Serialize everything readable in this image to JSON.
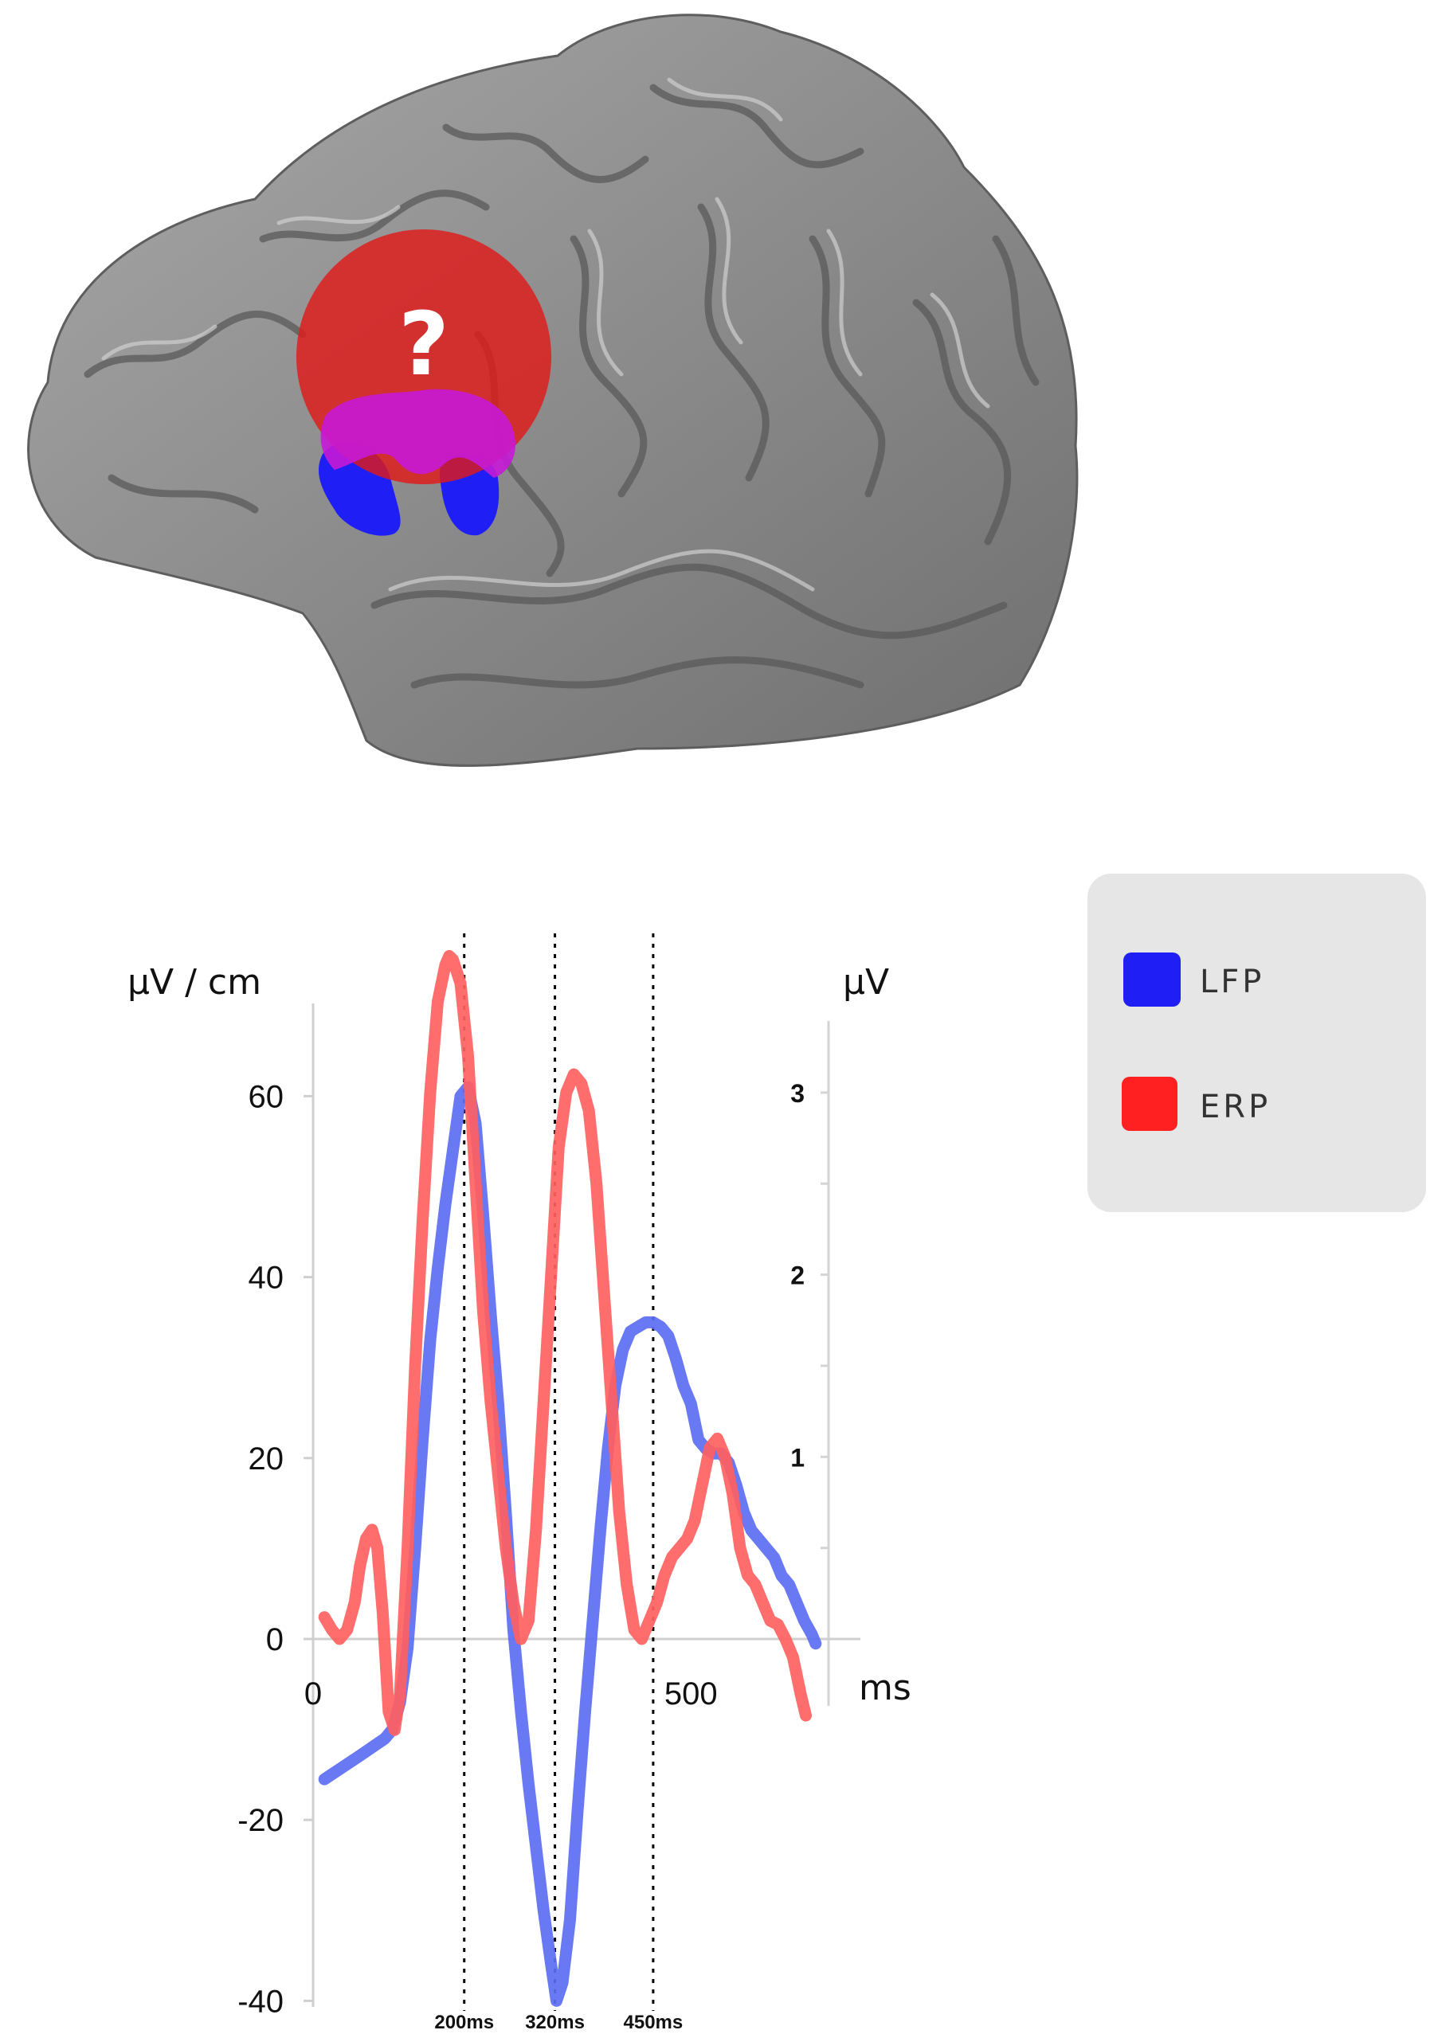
{
  "chart_data": {
    "type": "line",
    "x_unit": "ms",
    "xlim": [
      0,
      720
    ],
    "x_ticks": [
      "0",
      "500"
    ],
    "y_left_label": "µV / cm",
    "y_left_lim": [
      -40,
      70
    ],
    "y_left_ticks": [
      "60",
      "40",
      "20",
      "0",
      "-20",
      "-40"
    ],
    "y_right_label": "µV",
    "y_right_lim": [
      -2,
      3.5
    ],
    "y_right_ticks": [
      "3",
      "2",
      "1"
    ],
    "markers": [
      {
        "x": 200,
        "label": "200ms"
      },
      {
        "x": 320,
        "label": "320ms"
      },
      {
        "x": 450,
        "label": "450ms"
      }
    ],
    "annotation": "?",
    "legend": {
      "position": "top-right",
      "items": [
        {
          "name": "LFP",
          "color": "#1f1ff5"
        },
        {
          "name": "ERP",
          "color": "#ff2121"
        }
      ]
    },
    "series": [
      {
        "name": "LFP",
        "axis": "left",
        "color": "#5c6cf2",
        "x": [
          15,
          60,
          95,
          105,
          115,
          125,
          135,
          145,
          155,
          165,
          175,
          185,
          195,
          205,
          215,
          225,
          235,
          245,
          255,
          265,
          275,
          285,
          295,
          305,
          315,
          322,
          330,
          340,
          350,
          360,
          370,
          380,
          390,
          400,
          410,
          420,
          430,
          440,
          450,
          460,
          470,
          480,
          490,
          500,
          510,
          520,
          530,
          540,
          550,
          560,
          570,
          580,
          590,
          600,
          610,
          620,
          630,
          640,
          650,
          660,
          665
        ],
        "y": [
          -15.5,
          -13,
          -11,
          -10,
          -7,
          -1,
          10,
          22,
          33,
          41,
          48,
          54,
          60,
          61,
          57,
          47,
          36,
          26,
          14,
          1,
          -8,
          -16,
          -23,
          -30,
          -36,
          -40,
          -38,
          -31,
          -19,
          -8,
          2,
          12,
          21,
          28,
          32,
          34,
          34.5,
          35,
          35,
          34.5,
          33.5,
          31,
          28,
          26,
          22,
          21,
          20.5,
          20.5,
          19.5,
          17,
          14,
          12,
          11,
          10,
          9,
          7,
          6,
          4,
          2,
          0.5,
          -0.5
        ]
      },
      {
        "name": "ERP",
        "axis": "right",
        "color": "#ff6161",
        "x": [
          15,
          25,
          35,
          45,
          55,
          62,
          70,
          78,
          85,
          92,
          100,
          108,
          115,
          125,
          135,
          145,
          155,
          165,
          175,
          180,
          185,
          195,
          205,
          215,
          225,
          235,
          245,
          255,
          265,
          275,
          285,
          295,
          305,
          315,
          325,
          335,
          345,
          355,
          365,
          375,
          385,
          395,
          405,
          415,
          425,
          435,
          445,
          455,
          465,
          475,
          485,
          495,
          505,
          515,
          525,
          535,
          545,
          555,
          565,
          575,
          585,
          595,
          605,
          615,
          625,
          635,
          645,
          652
        ],
        "y": [
          0.12,
          0.05,
          0,
          0.05,
          0.2,
          0.4,
          0.55,
          0.6,
          0.5,
          0.15,
          -0.4,
          -0.5,
          -0.3,
          0.5,
          1.5,
          2.3,
          3.0,
          3.5,
          3.7,
          3.75,
          3.73,
          3.6,
          3.2,
          2.5,
          1.8,
          1.3,
          0.9,
          0.5,
          0.2,
          0,
          0.1,
          0.6,
          1.3,
          2.0,
          2.7,
          3.0,
          3.1,
          3.05,
          2.9,
          2.5,
          1.9,
          1.3,
          0.7,
          0.3,
          0.05,
          0,
          0.1,
          0.2,
          0.35,
          0.45,
          0.5,
          0.55,
          0.65,
          0.85,
          1.05,
          1.1,
          1.0,
          0.8,
          0.5,
          0.35,
          0.3,
          0.2,
          0.1,
          0.08,
          0.0,
          -0.1,
          -0.3,
          -0.42
        ]
      }
    ]
  }
}
